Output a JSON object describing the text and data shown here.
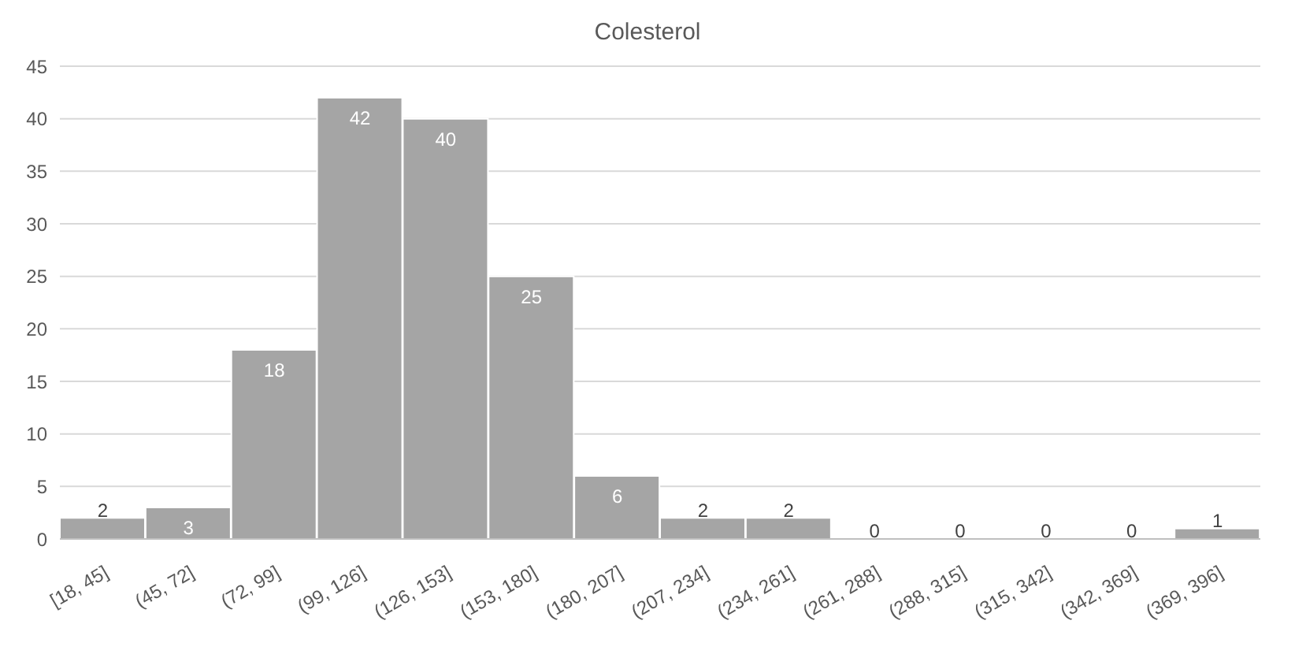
{
  "chart_data": {
    "type": "bar",
    "title": "Colesterol",
    "categories": [
      "[18, 45]",
      "(45, 72]",
      "(72, 99]",
      "(99, 126]",
      "(126, 153]",
      "(153, 180]",
      "(180, 207]",
      "(207, 234]",
      "(234, 261]",
      "(261, 288]",
      "(288, 315]",
      "(315, 342]",
      "(342, 369]",
      "(369, 396]"
    ],
    "values": [
      2,
      3,
      18,
      42,
      40,
      25,
      6,
      2,
      2,
      0,
      0,
      0,
      0,
      1
    ],
    "color": "#a5a5a5",
    "ylim": [
      0,
      45
    ],
    "yticks": [
      0,
      5,
      10,
      15,
      20,
      25,
      30,
      35,
      40,
      45
    ],
    "grid": "y",
    "data_labels": true
  }
}
